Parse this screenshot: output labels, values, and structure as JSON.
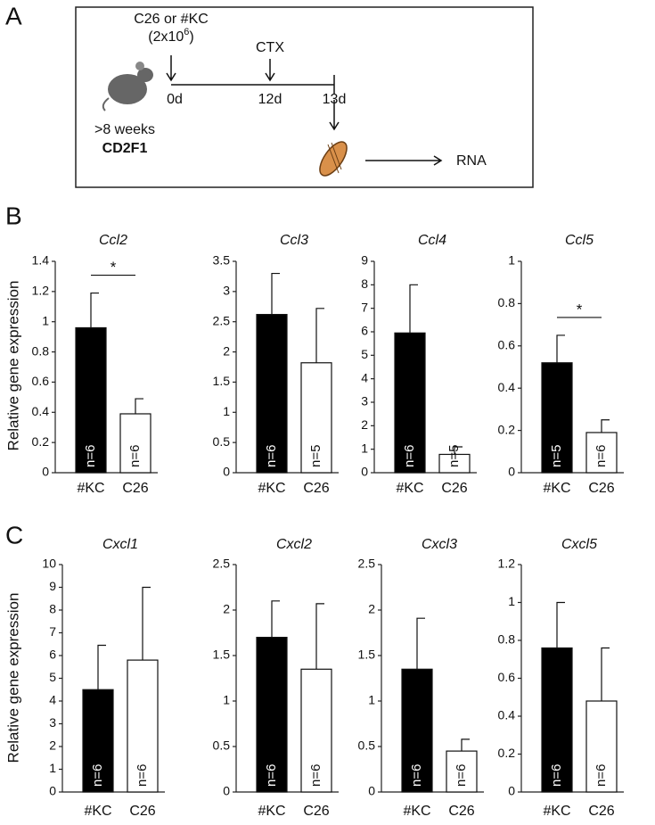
{
  "panel_labels": [
    "A",
    "B",
    "C"
  ],
  "diagram": {
    "injection": "C26 or #KC",
    "dose": "(2x10",
    "dose_exponent": "6",
    "dose_end": ")",
    "treatment": "CTX",
    "days": [
      "0d",
      "12d",
      "13d"
    ],
    "age": ">8 weeks",
    "strain": "CD2F1",
    "output": "RNA"
  },
  "chart_data": [
    {
      "type": "bar",
      "title": "Ccl2",
      "y_label": "Relative gene expression",
      "categories": [
        "#KC",
        "C26"
      ],
      "values": [
        0.96,
        0.39
      ],
      "errors": [
        0.23,
        0.1
      ],
      "colors": [
        "#000000",
        "#ffffff"
      ],
      "bar_notes": [
        "n=6",
        "n=6"
      ],
      "significance": "*",
      "ylim": [
        0,
        1.4
      ],
      "yticks": [
        0,
        0.2,
        0.4,
        0.6,
        0.8,
        1,
        1.2,
        1.4
      ]
    },
    {
      "type": "bar",
      "title": "Ccl3",
      "categories": [
        "#KC",
        "C26"
      ],
      "values": [
        2.62,
        1.82
      ],
      "errors": [
        0.68,
        0.9
      ],
      "colors": [
        "#000000",
        "#ffffff"
      ],
      "bar_notes": [
        "n=6",
        "n=5"
      ],
      "ylim": [
        0,
        3.5
      ],
      "yticks": [
        0,
        0.5,
        1,
        1.5,
        2,
        2.5,
        3,
        3.5
      ]
    },
    {
      "type": "bar",
      "title": "Ccl4",
      "categories": [
        "#KC",
        "C26"
      ],
      "values": [
        5.95,
        0.78
      ],
      "errors": [
        2.05,
        0.32
      ],
      "colors": [
        "#000000",
        "#ffffff"
      ],
      "bar_notes": [
        "n=6",
        "n=5"
      ],
      "ylim": [
        0,
        9
      ],
      "yticks": [
        0,
        1,
        2,
        3,
        4,
        5,
        6,
        7,
        8,
        9
      ]
    },
    {
      "type": "bar",
      "title": "Ccl5",
      "categories": [
        "#KC",
        "C26"
      ],
      "values": [
        0.52,
        0.19
      ],
      "errors": [
        0.13,
        0.06
      ],
      "colors": [
        "#000000",
        "#ffffff"
      ],
      "bar_notes": [
        "n=5",
        "n=6"
      ],
      "significance": "*",
      "ylim": [
        0,
        1
      ],
      "yticks": [
        0,
        0.2,
        0.4,
        0.6,
        0.8,
        1
      ]
    },
    {
      "type": "bar",
      "title": "Cxcl1",
      "y_label": "Relative gene expression",
      "categories": [
        "#KC",
        "C26"
      ],
      "values": [
        4.5,
        5.8
      ],
      "errors": [
        1.95,
        3.2
      ],
      "colors": [
        "#000000",
        "#ffffff"
      ],
      "bar_notes": [
        "n=6",
        "n=6"
      ],
      "ylim": [
        0,
        10
      ],
      "yticks": [
        0,
        1,
        2,
        3,
        4,
        5,
        6,
        7,
        8,
        9,
        10
      ]
    },
    {
      "type": "bar",
      "title": "Cxcl2",
      "categories": [
        "#KC",
        "C26"
      ],
      "values": [
        1.7,
        1.35
      ],
      "errors": [
        0.4,
        0.72
      ],
      "colors": [
        "#000000",
        "#ffffff"
      ],
      "bar_notes": [
        "n=6",
        "n=6"
      ],
      "ylim": [
        0,
        2.5
      ],
      "yticks": [
        0,
        0.5,
        1,
        1.5,
        2,
        2.5
      ]
    },
    {
      "type": "bar",
      "title": "Cxcl3",
      "categories": [
        "#KC",
        "C26"
      ],
      "values": [
        1.35,
        0.45
      ],
      "errors": [
        0.56,
        0.13
      ],
      "colors": [
        "#000000",
        "#ffffff"
      ],
      "bar_notes": [
        "n=6",
        "n=6"
      ],
      "ylim": [
        0,
        2.5
      ],
      "yticks": [
        0,
        0.5,
        1,
        1.5,
        2,
        2.5
      ]
    },
    {
      "type": "bar",
      "title": "Cxcl5",
      "categories": [
        "#KC",
        "C26"
      ],
      "values": [
        0.76,
        0.48
      ],
      "errors": [
        0.24,
        0.28
      ],
      "colors": [
        "#000000",
        "#ffffff"
      ],
      "bar_notes": [
        "n=6",
        "n=6"
      ],
      "ylim": [
        0,
        1.2
      ],
      "yticks": [
        0,
        0.2,
        0.4,
        0.6,
        0.8,
        1,
        1.2
      ]
    }
  ]
}
